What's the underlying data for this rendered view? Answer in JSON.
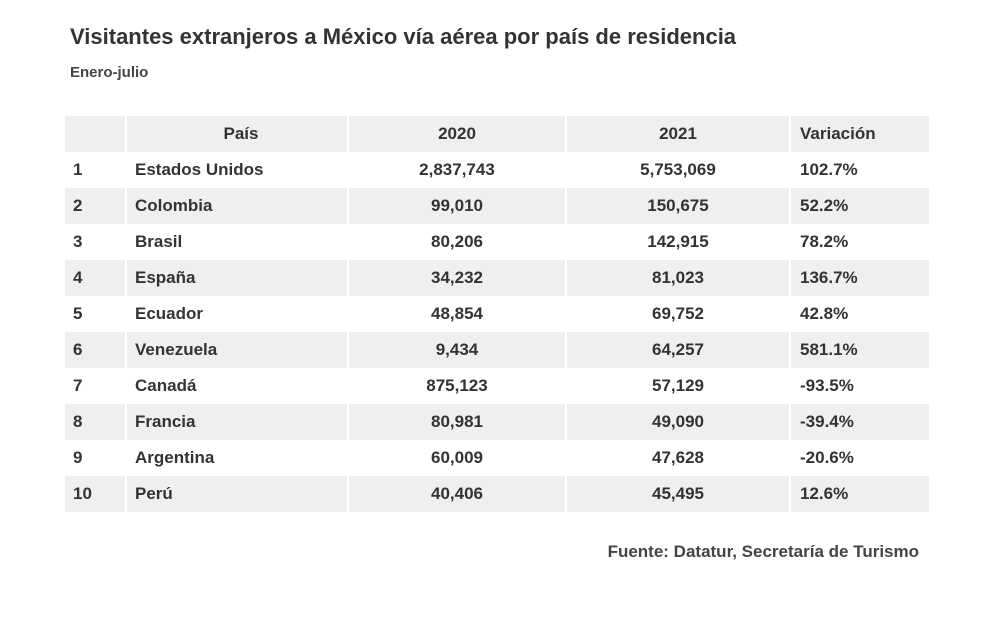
{
  "chart_data": {
    "type": "table",
    "title": "Visitantes extranjeros a México vía aérea por país de residencia",
    "subtitle": "Enero-julio",
    "columns": [
      "",
      "País",
      "2020",
      "2021",
      "Variación"
    ],
    "rows": [
      {
        "rank": "1",
        "country": "Estados Unidos",
        "y2020": "2,837,743",
        "y2021": "5,753,069",
        "variation": "102.7%"
      },
      {
        "rank": "2",
        "country": "Colombia",
        "y2020": "99,010",
        "y2021": "150,675",
        "variation": "52.2%"
      },
      {
        "rank": "3",
        "country": "Brasil",
        "y2020": "80,206",
        "y2021": "142,915",
        "variation": "78.2%"
      },
      {
        "rank": "4",
        "country": "España",
        "y2020": "34,232",
        "y2021": "81,023",
        "variation": "136.7%"
      },
      {
        "rank": "5",
        "country": "Ecuador",
        "y2020": "48,854",
        "y2021": "69,752",
        "variation": "42.8%"
      },
      {
        "rank": "6",
        "country": "Venezuela",
        "y2020": "9,434",
        "y2021": "64,257",
        "variation": "581.1%"
      },
      {
        "rank": "7",
        "country": "Canadá",
        "y2020": "875,123",
        "y2021": "57,129",
        "variation": "-93.5%"
      },
      {
        "rank": "8",
        "country": "Francia",
        "y2020": "80,981",
        "y2021": "49,090",
        "variation": "-39.4%"
      },
      {
        "rank": "9",
        "country": "Argentina",
        "y2020": "60,009",
        "y2021": "47,628",
        "variation": "-20.6%"
      },
      {
        "rank": "10",
        "country": "Perú",
        "y2020": "40,406",
        "y2021": "45,495",
        "variation": "12.6%"
      }
    ],
    "source": "Fuente: Datatur, Secretaría de Turismo"
  }
}
